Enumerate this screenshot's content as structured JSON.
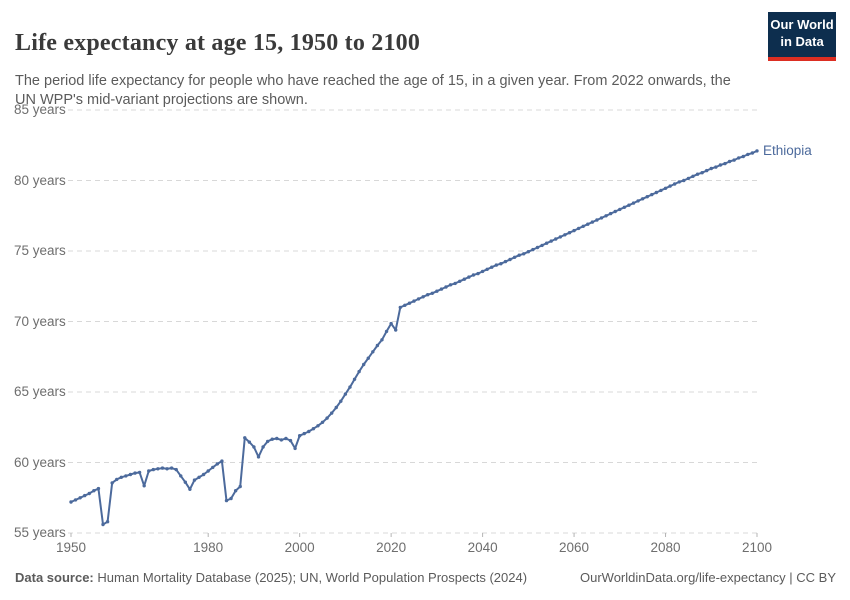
{
  "header": {
    "title": "Life expectancy at age 15, 1950 to 2100",
    "subtitle": "The period life expectancy for people who have reached the age of 15, in a given year. From 2022 onwards, the UN WPP's mid-variant projections are shown.",
    "logo": {
      "line1": "Our World",
      "line2": "in Data",
      "bg_color": "#0d2e4e",
      "accent_color": "#dc2e22"
    }
  },
  "chart_data": {
    "type": "line",
    "title": "Life expectancy at age 15, 1950 to 2100",
    "entity": "Ethiopia",
    "line_color": "#4c6a9c",
    "grid": true,
    "grid_color": "#d8d8d8",
    "axis_label_color": "#6e6e6e",
    "xlim": [
      1950,
      2100
    ],
    "ylim": [
      55,
      85
    ],
    "x_ticks": [
      1950,
      1980,
      2000,
      2020,
      2040,
      2060,
      2080,
      2100
    ],
    "y_ticks": [
      55,
      60,
      65,
      70,
      75,
      80,
      85
    ],
    "y_tick_suffix": " years",
    "legend_position": "end-of-line-label",
    "series": [
      {
        "name": "Ethiopia",
        "start_year": 1950,
        "end_year": 2100,
        "values": [
          57.2,
          57.35,
          57.5,
          57.65,
          57.8,
          58.0,
          58.15,
          55.6,
          55.8,
          58.55,
          58.8,
          58.95,
          59.05,
          59.15,
          59.25,
          59.3,
          58.35,
          59.4,
          59.5,
          59.55,
          59.6,
          59.55,
          59.6,
          59.5,
          59.05,
          58.6,
          58.1,
          58.75,
          58.95,
          59.15,
          59.4,
          59.65,
          59.9,
          60.1,
          57.3,
          57.45,
          58.0,
          58.3,
          61.75,
          61.45,
          61.1,
          60.4,
          61.1,
          61.5,
          61.65,
          61.7,
          61.6,
          61.7,
          61.55,
          61.0,
          61.9,
          62.05,
          62.2,
          62.4,
          62.6,
          62.85,
          63.15,
          63.5,
          63.9,
          64.35,
          64.85,
          65.35,
          65.9,
          66.45,
          66.95,
          67.4,
          67.85,
          68.3,
          68.7,
          69.3,
          69.85,
          69.4,
          71.0,
          71.15,
          71.3,
          71.45,
          71.6,
          71.75,
          71.9,
          72.0,
          72.15,
          72.3,
          72.45,
          72.6,
          72.7,
          72.85,
          73.0,
          73.15,
          73.3,
          73.4,
          73.55,
          73.7,
          73.85,
          74.0,
          74.1,
          74.25,
          74.4,
          74.55,
          74.7,
          74.8,
          74.95,
          75.1,
          75.25,
          75.4,
          75.55,
          75.7,
          75.85,
          76.0,
          76.15,
          76.3,
          76.45,
          76.6,
          76.75,
          76.9,
          77.05,
          77.2,
          77.35,
          77.5,
          77.65,
          77.8,
          77.95,
          78.1,
          78.25,
          78.4,
          78.55,
          78.7,
          78.85,
          79.0,
          79.15,
          79.3,
          79.45,
          79.6,
          79.75,
          79.9,
          80.0,
          80.15,
          80.3,
          80.45,
          80.55,
          80.7,
          80.85,
          80.95,
          81.1,
          81.2,
          81.35,
          81.45,
          81.6,
          81.7,
          81.85,
          81.95,
          82.1
        ]
      }
    ]
  },
  "footer": {
    "datasource_label": "Data source:",
    "datasource_text": " Human Mortality Database (2025); UN, World Population Prospects (2024)",
    "link_text": "OurWorldinData.org/life-expectancy | CC BY"
  }
}
